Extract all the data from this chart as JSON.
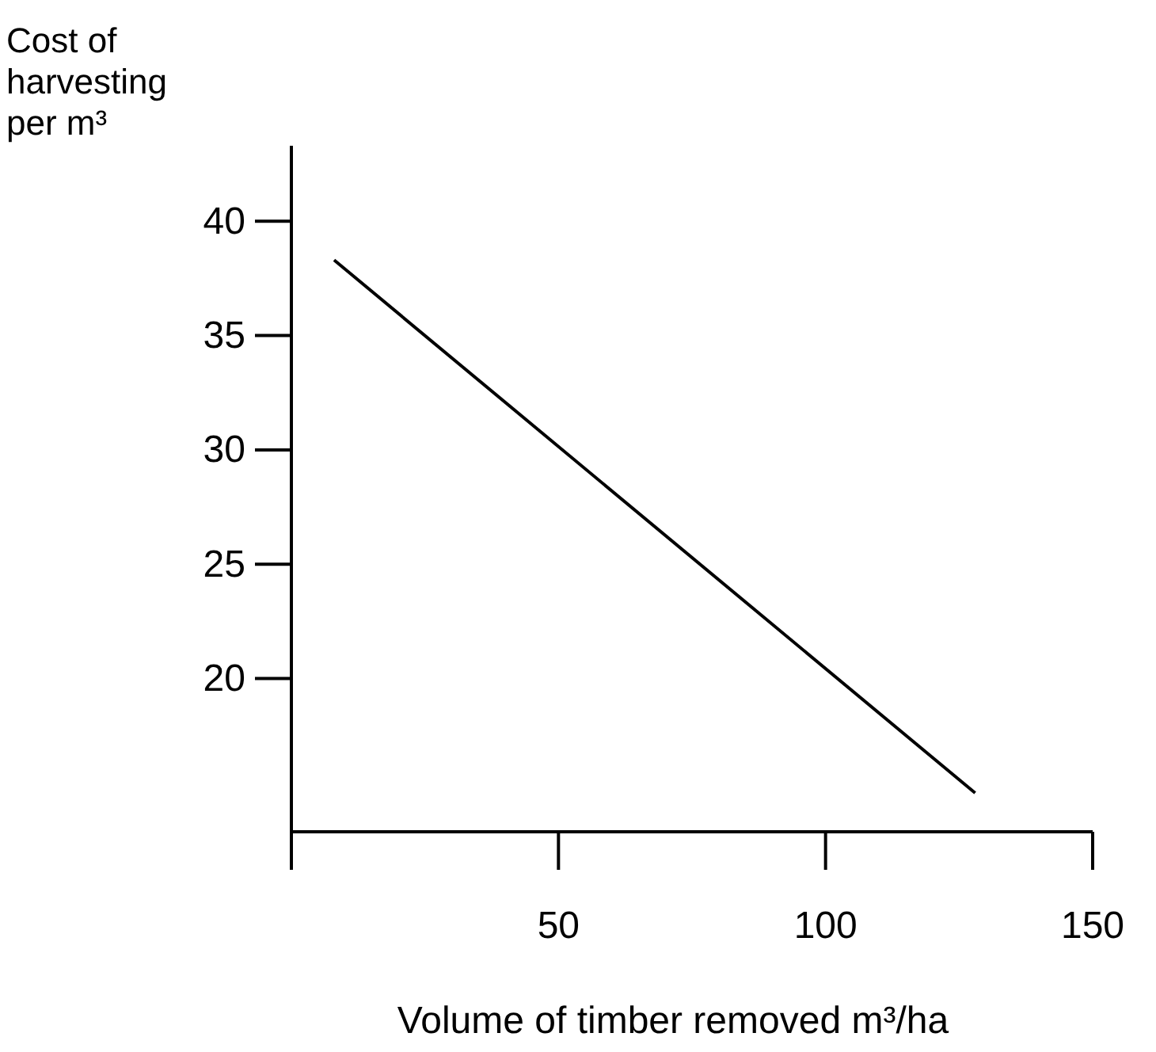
{
  "chart_data": {
    "type": "line",
    "ylabel": "Cost of harvesting per m³",
    "xlabel": "Volume of timber removed m³/ha",
    "x": [
      8,
      128
    ],
    "series": [
      {
        "color": "#000000",
        "values": [
          38.3,
          15.0
        ]
      }
    ],
    "xlim": [
      0,
      150
    ],
    "xticks": [
      {
        "value": 0,
        "label": null
      },
      50,
      100,
      150
    ],
    "ylim": [
      13.3,
      43.3
    ],
    "yticks": [
      20,
      25,
      30,
      35,
      40
    ],
    "grid": false,
    "marker": "none",
    "line_style": "solid"
  }
}
